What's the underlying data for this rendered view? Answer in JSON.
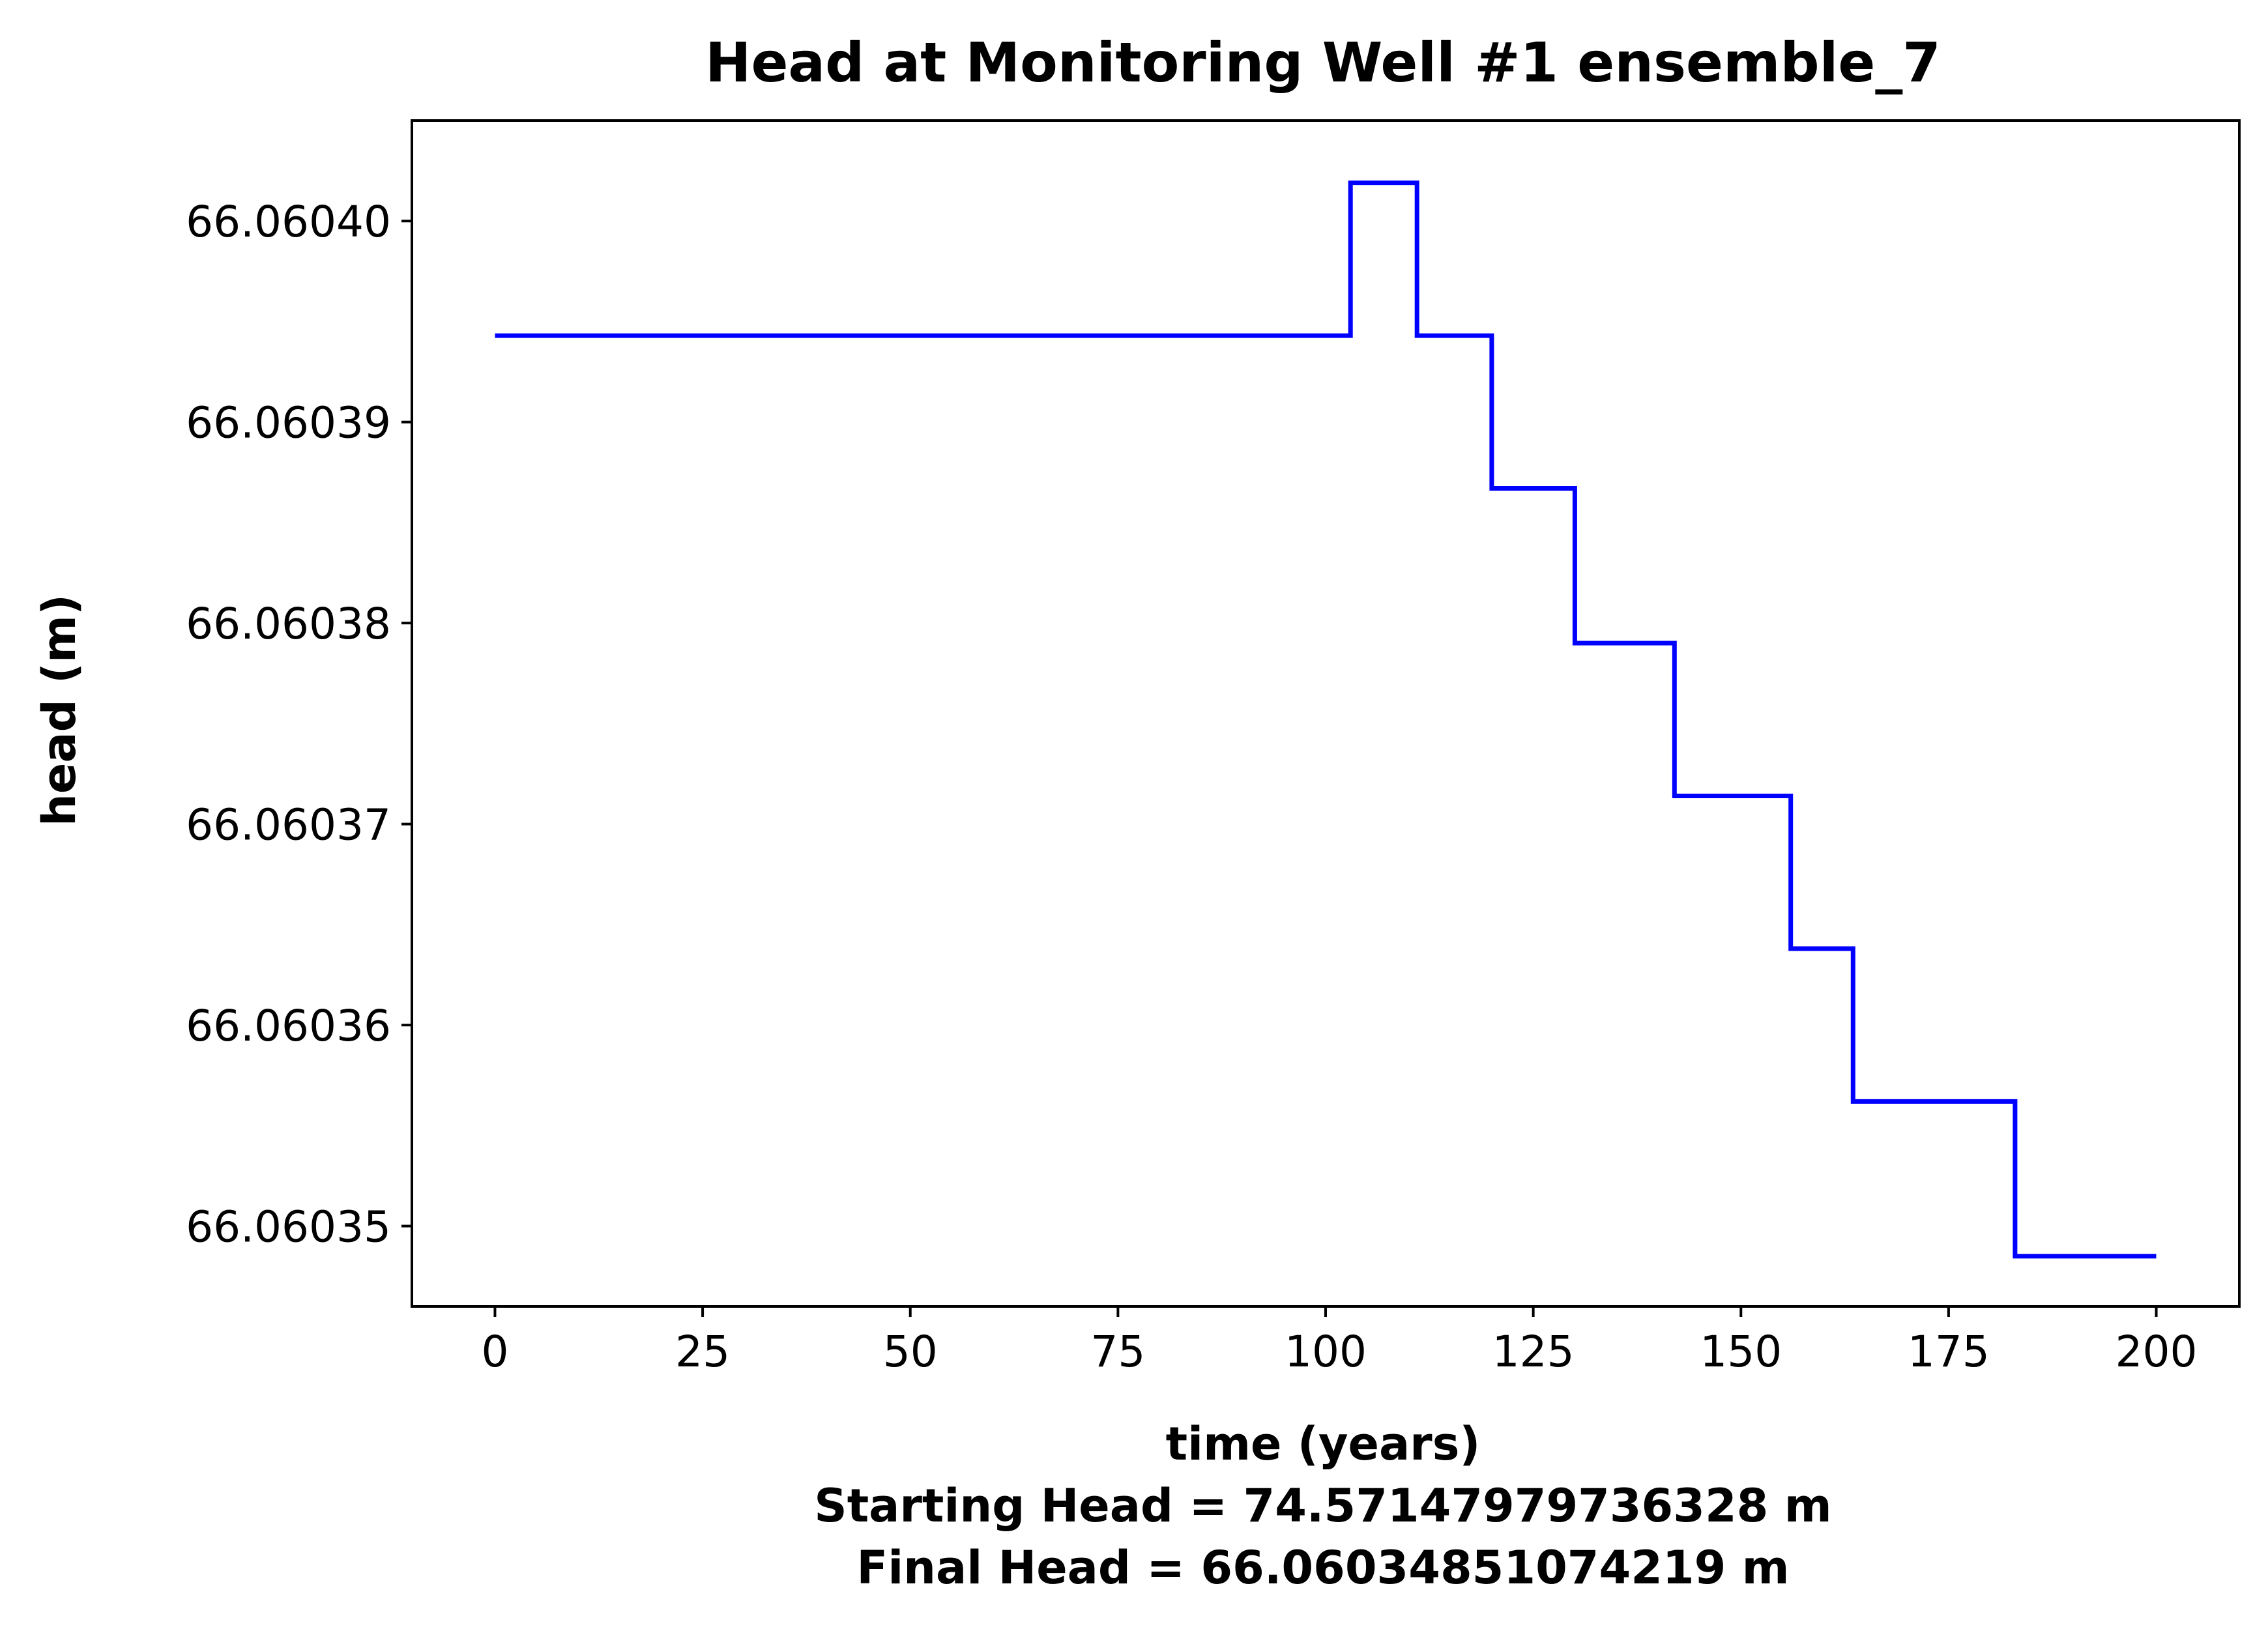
{
  "chart_data": {
    "type": "line",
    "title": "Head at Monitoring Well #1 ensemble_7",
    "xlabel": "time (years)",
    "ylabel": "head (m)",
    "notes": [
      "Starting Head = 74.57147979736328 m",
      "Final Head = 66.06034851074219 m"
    ],
    "xlim": [
      -10,
      210
    ],
    "ylim": [
      66.060346,
      66.060405
    ],
    "xticks": [
      0,
      25,
      50,
      75,
      100,
      125,
      150,
      175,
      200
    ],
    "xtick_labels": [
      "0",
      "25",
      "50",
      "75",
      "100",
      "125",
      "150",
      "175",
      "200"
    ],
    "yticks": [
      66.06035,
      66.06036,
      66.06037,
      66.06038,
      66.06039,
      66.0604
    ],
    "ytick_labels": [
      "66.06035",
      "66.06036",
      "66.06037",
      "66.06038",
      "66.06039",
      "66.06040"
    ],
    "grid": false,
    "line_color": "#0000ff",
    "series": [
      {
        "x": [
          0,
          103,
          103,
          111,
          111,
          120,
          120,
          130,
          130,
          142,
          142,
          156,
          156,
          163.5,
          163.5,
          183,
          183,
          200
        ],
        "y": [
          66.0603943,
          66.0603943,
          66.0604019,
          66.0604019,
          66.0603943,
          66.0603943,
          66.0603867,
          66.0603867,
          66.060379,
          66.060379,
          66.0603714,
          66.0603714,
          66.0603638,
          66.0603638,
          66.0603562,
          66.0603562,
          66.0603485,
          66.0603485
        ]
      }
    ]
  }
}
